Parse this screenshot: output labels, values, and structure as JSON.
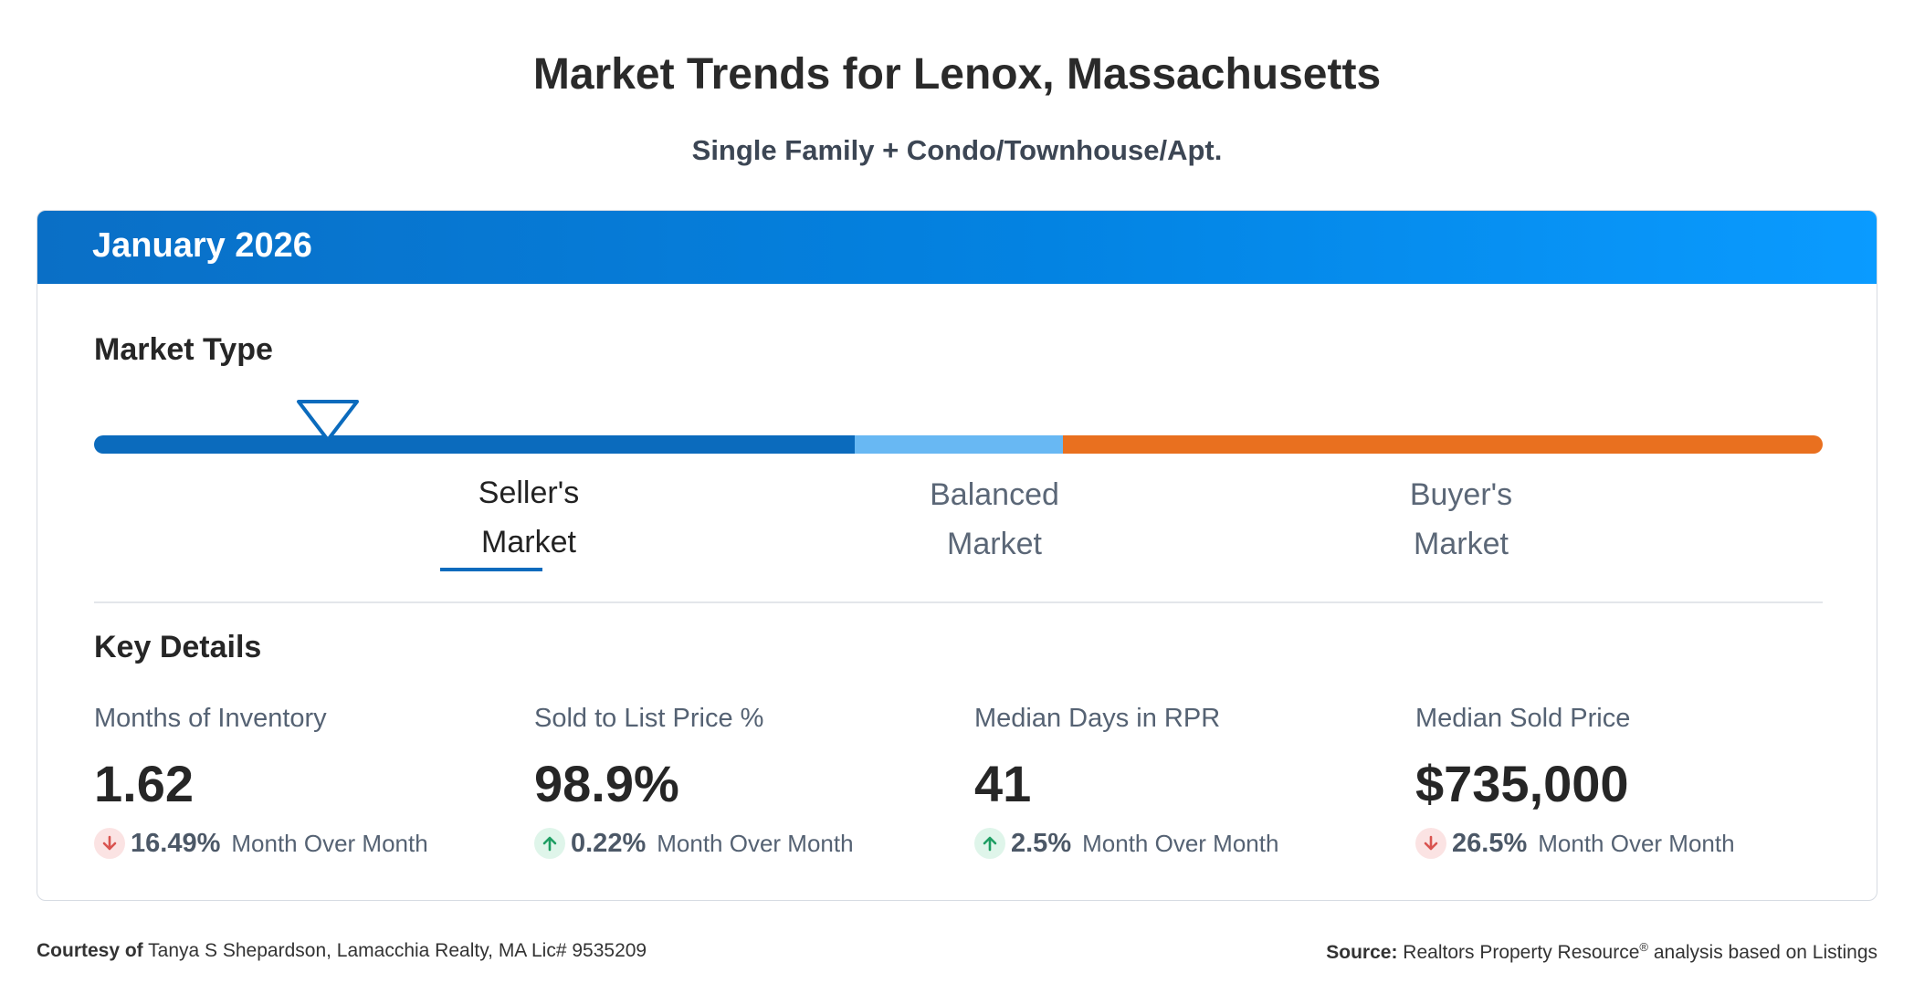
{
  "page": {
    "title": "Market Trends for Lenox, Massachusetts",
    "subtitle": "Single Family + Condo/Townhouse/Apt."
  },
  "card": {
    "period": "January 2026",
    "market_type": {
      "title": "Market Type",
      "segments": [
        {
          "line1": "Seller's",
          "line2": "Market",
          "color": "#0b6bbd",
          "active": true
        },
        {
          "line1": "Balanced",
          "line2": "Market",
          "color": "#68b8f3",
          "active": false
        },
        {
          "line1": "Buyer's",
          "line2": "Market",
          "color": "#e9701f",
          "active": false
        }
      ],
      "indicator_position_fraction": 0.135
    },
    "key_details": {
      "title": "Key Details",
      "metrics": [
        {
          "label": "Months of Inventory",
          "value": "1.62",
          "direction": "down",
          "change": "16.49%",
          "change_text": "Month Over Month"
        },
        {
          "label": "Sold to List Price %",
          "value": "98.9%",
          "direction": "up",
          "change": "0.22%",
          "change_text": "Month Over Month"
        },
        {
          "label": "Median Days in RPR",
          "value": "41",
          "direction": "up",
          "change": "2.5%",
          "change_text": "Month Over Month"
        },
        {
          "label": "Median Sold Price",
          "value": "$735,000",
          "direction": "down",
          "change": "26.5%",
          "change_text": "Month Over Month"
        }
      ]
    }
  },
  "footer": {
    "courtesy_label": "Courtesy of",
    "courtesy_text": "Tanya S Shepardson, Lamacchia Realty, MA Lic# 9535209",
    "source_label": "Source:",
    "source_text_1": "Realtors Property Resource",
    "source_reg": "®",
    "source_text_2": "analysis based on Listings"
  },
  "colors": {
    "header_gradient_start": "#0a6fc6",
    "header_gradient_end": "#0a9bff",
    "down_arrow": "#d9534f",
    "up_arrow": "#1e9e63"
  }
}
